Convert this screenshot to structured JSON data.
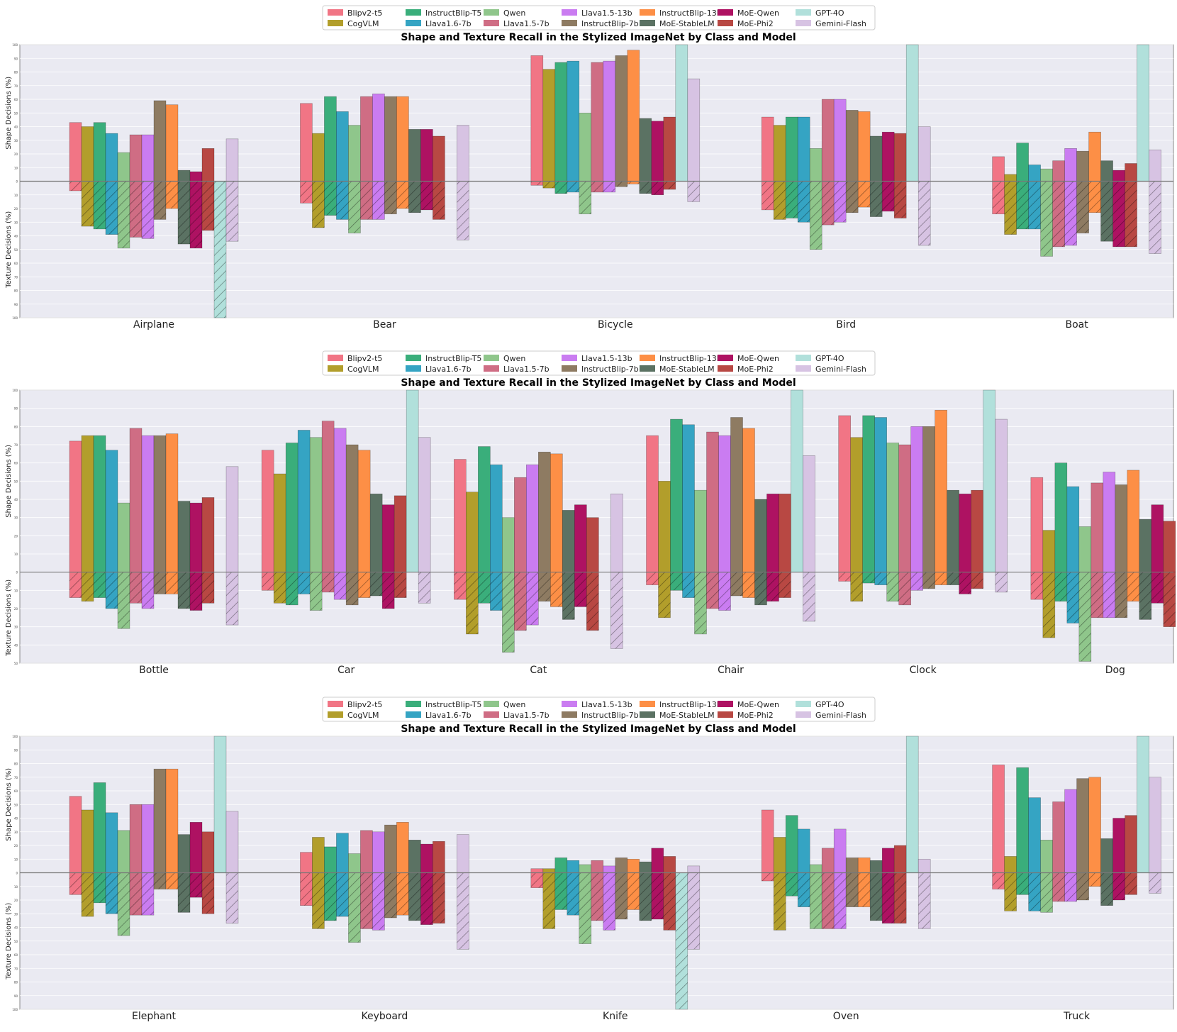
{
  "models": [
    "Blipv2-t5",
    "CogVLM",
    "InstructBlip-T5",
    "Llava1.6-7b",
    "Qwen",
    "Llava1.5-7b",
    "Llava1.5-13b",
    "InstructBlip-7b",
    "InstructBlip-13b",
    "MoE-StableLM",
    "MoE-Qwen",
    "MoE-Phi2",
    "GPT-4O",
    "Gemini-Flash"
  ],
  "colors": {
    "Blipv2-t5": "#f17585",
    "CogVLM": "#b29e2b",
    "InstructBlip-T5": "#3aae7b",
    "Llava1.6-7b": "#35a4c3",
    "Qwen": "#8fc68b",
    "Llava1.5-7b": "#cf6d84",
    "Llava1.5-13b": "#ca7cf1",
    "InstructBlip-7b": "#8e7b62",
    "InstructBlip-13b": "#fd8f46",
    "MoE-StableLM": "#5b7263",
    "MoE-Qwen": "#ae1262",
    "MoE-Phi2": "#b84843",
    "GPT-4O": "#b1e0db",
    "Gemini-Flash": "#d7c3e3"
  },
  "chart_data": [
    {
      "type": "bar",
      "title": "Shape and Texture Recall in the Stylized ImageNet by Class and Model",
      "ylabel_top": "Shape Decisions (%)",
      "ylabel_bottom": "Texture Decisions (%)",
      "ylim": [
        -100,
        100
      ],
      "legend": "top-center",
      "categories": [
        "Airplane",
        "Bear",
        "Bicycle",
        "Bird",
        "Boat"
      ],
      "series": [
        {
          "name": "Blipv2-t5",
          "shape": [
            43,
            57,
            92,
            47,
            18
          ],
          "texture": [
            7,
            16,
            3,
            21,
            24
          ]
        },
        {
          "name": "CogVLM",
          "shape": [
            40,
            35,
            82,
            41,
            5
          ],
          "texture": [
            33,
            34,
            5,
            28,
            39
          ]
        },
        {
          "name": "InstructBlip-T5",
          "shape": [
            43,
            62,
            87,
            47,
            28
          ],
          "texture": [
            35,
            25,
            9,
            27,
            35
          ]
        },
        {
          "name": "Llava1.6-7b",
          "shape": [
            35,
            51,
            88,
            47,
            12
          ],
          "texture": [
            39,
            28,
            8,
            30,
            35
          ]
        },
        {
          "name": "Qwen",
          "shape": [
            21,
            41,
            50,
            24,
            9
          ],
          "texture": [
            49,
            38,
            24,
            50,
            55
          ]
        },
        {
          "name": "Llava1.5-7b",
          "shape": [
            34,
            62,
            87,
            60,
            15
          ],
          "texture": [
            41,
            28,
            8,
            32,
            48
          ]
        },
        {
          "name": "Llava1.5-13b",
          "shape": [
            34,
            64,
            88,
            60,
            24
          ],
          "texture": [
            42,
            28,
            8,
            30,
            47
          ]
        },
        {
          "name": "InstructBlip-7b",
          "shape": [
            59,
            62,
            92,
            52,
            22
          ],
          "texture": [
            28,
            24,
            4,
            23,
            38
          ]
        },
        {
          "name": "InstructBlip-13b",
          "shape": [
            56,
            62,
            96,
            51,
            36
          ],
          "texture": [
            20,
            20,
            2,
            19,
            23
          ]
        },
        {
          "name": "MoE-StableLM",
          "shape": [
            8,
            38,
            46,
            33,
            15
          ],
          "texture": [
            46,
            23,
            9,
            26,
            44
          ]
        },
        {
          "name": "MoE-Qwen",
          "shape": [
            7,
            38,
            44,
            36,
            8
          ],
          "texture": [
            49,
            21,
            10,
            22,
            48
          ]
        },
        {
          "name": "MoE-Phi2",
          "shape": [
            24,
            33,
            47,
            35,
            13
          ],
          "texture": [
            36,
            28,
            6,
            27,
            48
          ]
        },
        {
          "name": "GPT-4O",
          "shape": [
            0,
            0,
            100,
            100,
            100
          ],
          "texture": [
            100,
            0,
            0,
            0,
            0
          ]
        },
        {
          "name": "Gemini-Flash",
          "shape": [
            31,
            41,
            75,
            40,
            23
          ],
          "texture": [
            44,
            43,
            15,
            47,
            53
          ]
        }
      ]
    },
    {
      "type": "bar",
      "title": "Shape and Texture Recall in the Stylized ImageNet by Class and Model",
      "ylabel_top": "Shape Decisions (%)",
      "ylabel_bottom": "Texture Decisions (%)",
      "ylim": [
        -50,
        100
      ],
      "legend": "top-center",
      "categories": [
        "Bottle",
        "Car",
        "Cat",
        "Chair",
        "Clock",
        "Dog"
      ],
      "series": [
        {
          "name": "Blipv2-t5",
          "shape": [
            72,
            67,
            62,
            75,
            86,
            52
          ],
          "texture": [
            14,
            10,
            15,
            7,
            5,
            15
          ]
        },
        {
          "name": "CogVLM",
          "shape": [
            75,
            54,
            44,
            50,
            74,
            23
          ],
          "texture": [
            16,
            17,
            34,
            25,
            16,
            36
          ]
        },
        {
          "name": "InstructBlip-T5",
          "shape": [
            75,
            71,
            69,
            84,
            86,
            60
          ],
          "texture": [
            14,
            18,
            17,
            10,
            6,
            16
          ]
        },
        {
          "name": "Llava1.6-7b",
          "shape": [
            67,
            78,
            59,
            81,
            85,
            47
          ],
          "texture": [
            20,
            12,
            21,
            14,
            7,
            28
          ]
        },
        {
          "name": "Qwen",
          "shape": [
            38,
            74,
            30,
            45,
            71,
            25
          ],
          "texture": [
            31,
            21,
            44,
            34,
            16,
            49
          ]
        },
        {
          "name": "Llava1.5-7b",
          "shape": [
            79,
            83,
            52,
            77,
            70,
            49
          ],
          "texture": [
            17,
            11,
            32,
            20,
            18,
            25
          ]
        },
        {
          "name": "Llava1.5-13b",
          "shape": [
            75,
            79,
            59,
            75,
            80,
            55
          ],
          "texture": [
            20,
            15,
            29,
            21,
            10,
            25
          ]
        },
        {
          "name": "InstructBlip-7b",
          "shape": [
            75,
            70,
            66,
            85,
            80,
            48
          ],
          "texture": [
            12,
            18,
            16,
            13,
            9,
            25
          ]
        },
        {
          "name": "InstructBlip-13b",
          "shape": [
            76,
            67,
            65,
            79,
            89,
            56
          ],
          "texture": [
            12,
            14,
            19,
            14,
            7,
            16
          ]
        },
        {
          "name": "MoE-StableLM",
          "shape": [
            39,
            43,
            34,
            40,
            45,
            29
          ],
          "texture": [
            20,
            13,
            26,
            18,
            7,
            26
          ]
        },
        {
          "name": "MoE-Qwen",
          "shape": [
            38,
            37,
            37,
            43,
            43,
            37
          ],
          "texture": [
            21,
            20,
            19,
            16,
            12,
            17
          ]
        },
        {
          "name": "MoE-Phi2",
          "shape": [
            41,
            42,
            30,
            43,
            45,
            28
          ],
          "texture": [
            17,
            14,
            32,
            14,
            9,
            30
          ]
        },
        {
          "name": "GPT-4O",
          "shape": [
            0,
            100,
            0,
            100,
            100,
            0
          ],
          "texture": [
            0,
            0,
            0,
            0,
            0,
            0
          ]
        },
        {
          "name": "Gemini-Flash",
          "shape": [
            58,
            74,
            43,
            64,
            84,
            32
          ],
          "texture": [
            29,
            17,
            42,
            27,
            11,
            39
          ]
        }
      ]
    },
    {
      "type": "bar",
      "title": "Shape and Texture Recall in the Stylized ImageNet by Class and Model",
      "ylabel_top": "Shape Decisions (%)",
      "ylabel_bottom": "Texture Decisions (%)",
      "ylim": [
        -100,
        100
      ],
      "legend": "top-center",
      "categories": [
        "Elephant",
        "Keyboard",
        "Knife",
        "Oven",
        "Truck"
      ],
      "series": [
        {
          "name": "Blipv2-t5",
          "shape": [
            56,
            15,
            3,
            46,
            79
          ],
          "texture": [
            16,
            24,
            11,
            6,
            12
          ]
        },
        {
          "name": "CogVLM",
          "shape": [
            46,
            26,
            3,
            26,
            12
          ],
          "texture": [
            32,
            41,
            41,
            42,
            28
          ]
        },
        {
          "name": "InstructBlip-T5",
          "shape": [
            66,
            19,
            11,
            42,
            77
          ],
          "texture": [
            22,
            35,
            27,
            17,
            16
          ]
        },
        {
          "name": "Llava1.6-7b",
          "shape": [
            44,
            29,
            9,
            32,
            55
          ],
          "texture": [
            30,
            32,
            31,
            25,
            28
          ]
        },
        {
          "name": "Qwen",
          "shape": [
            31,
            14,
            6,
            6,
            24
          ],
          "texture": [
            46,
            51,
            52,
            41,
            29
          ]
        },
        {
          "name": "Llava1.5-7b",
          "shape": [
            50,
            31,
            9,
            18,
            52
          ],
          "texture": [
            31,
            41,
            35,
            41,
            21
          ]
        },
        {
          "name": "Llava1.5-13b",
          "shape": [
            50,
            30,
            5,
            32,
            61
          ],
          "texture": [
            31,
            42,
            42,
            41,
            21
          ]
        },
        {
          "name": "InstructBlip-7b",
          "shape": [
            76,
            35,
            11,
            11,
            69
          ],
          "texture": [
            12,
            33,
            34,
            25,
            20
          ]
        },
        {
          "name": "InstructBlip-13b",
          "shape": [
            76,
            37,
            10,
            11,
            70
          ],
          "texture": [
            12,
            31,
            27,
            25,
            10
          ]
        },
        {
          "name": "MoE-StableLM",
          "shape": [
            28,
            24,
            8,
            9,
            25
          ],
          "texture": [
            29,
            35,
            35,
            35,
            24
          ]
        },
        {
          "name": "MoE-Qwen",
          "shape": [
            37,
            21,
            18,
            18,
            40
          ],
          "texture": [
            18,
            38,
            34,
            37,
            20
          ]
        },
        {
          "name": "MoE-Phi2",
          "shape": [
            30,
            23,
            12,
            20,
            42
          ],
          "texture": [
            30,
            37,
            42,
            37,
            16
          ]
        },
        {
          "name": "GPT-4O",
          "shape": [
            100,
            0,
            0,
            100,
            100
          ],
          "texture": [
            0,
            0,
            100,
            0,
            0
          ]
        },
        {
          "name": "Gemini-Flash",
          "shape": [
            45,
            28,
            5,
            10,
            70
          ],
          "texture": [
            37,
            56,
            56,
            41,
            15
          ]
        }
      ]
    }
  ]
}
